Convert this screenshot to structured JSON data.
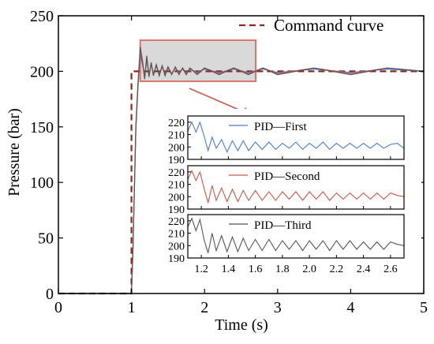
{
  "chart_data": [
    {
      "type": "line",
      "xlabel": "Time (s)",
      "ylabel": "Pressure (bar)",
      "xlim": [
        0,
        5
      ],
      "ylim": [
        0,
        250
      ],
      "xticks": [
        0,
        1,
        2,
        3,
        4,
        5
      ],
      "yticks": [
        0,
        50,
        100,
        150,
        200,
        250
      ],
      "grid": false,
      "legend_position": "top-right",
      "series": [
        {
          "name": "Command curve",
          "style": "dashed",
          "color": "#8b2a1c",
          "x": [
            0,
            1.0,
            1.0,
            5.0
          ],
          "y": [
            0,
            0,
            200,
            200
          ]
        },
        {
          "style": "solid",
          "color": "#4a79d6",
          "x": [
            0,
            1.0,
            1.02,
            1.06,
            1.09,
            1.12,
            1.15,
            1.18,
            1.21,
            1.24,
            1.27,
            1.3,
            1.34,
            1.38,
            1.42,
            1.46,
            1.5,
            1.55,
            1.6,
            1.65,
            1.7,
            1.75,
            1.8,
            1.9,
            2.0,
            2.2,
            2.4,
            2.6,
            2.8,
            3.0,
            3.5,
            4.0,
            4.5,
            5.0
          ],
          "y": [
            0,
            0,
            40,
            150,
            188,
            215,
            206,
            196,
            210,
            197,
            206,
            198,
            205,
            197,
            204,
            198,
            203,
            198,
            203,
            199,
            202,
            198,
            202,
            199,
            202,
            199,
            202,
            199,
            202,
            199,
            202,
            199,
            202,
            200
          ]
        },
        {
          "style": "solid",
          "color": "#c9574a",
          "x": [
            0,
            1.0,
            1.02,
            1.06,
            1.09,
            1.12,
            1.15,
            1.18,
            1.21,
            1.24,
            1.27,
            1.3,
            1.34,
            1.38,
            1.42,
            1.46,
            1.5,
            1.55,
            1.6,
            1.65,
            1.7,
            1.75,
            1.8,
            1.9,
            2.0,
            2.2,
            2.4,
            2.6,
            2.8,
            3.0,
            3.5,
            4.0,
            4.5,
            5.0
          ],
          "y": [
            0,
            0,
            38,
            148,
            186,
            217,
            208,
            194,
            212,
            196,
            207,
            197,
            206,
            197,
            205,
            197,
            204,
            198,
            203,
            198,
            203,
            198,
            203,
            198,
            203,
            198,
            203,
            198,
            203,
            198,
            203,
            198,
            203,
            200
          ]
        },
        {
          "style": "solid",
          "color": "#555555",
          "x": [
            0,
            1.0,
            1.02,
            1.06,
            1.09,
            1.12,
            1.15,
            1.18,
            1.21,
            1.24,
            1.27,
            1.3,
            1.34,
            1.38,
            1.42,
            1.46,
            1.5,
            1.55,
            1.6,
            1.65,
            1.7,
            1.75,
            1.8,
            1.9,
            2.0,
            2.2,
            2.4,
            2.6,
            2.8,
            3.0,
            3.5,
            4.0,
            4.5,
            5.0
          ],
          "y": [
            0,
            0,
            42,
            152,
            190,
            222,
            210,
            193,
            214,
            195,
            208,
            196,
            206,
            196,
            205,
            196,
            204,
            197,
            204,
            197,
            203,
            197,
            203,
            197,
            203,
            197,
            203,
            197,
            203,
            197,
            203,
            197,
            203,
            200
          ]
        }
      ],
      "annotation": {
        "zoom_box_x": [
          1.12,
          2.7
        ],
        "zoom_box_y": [
          191,
          228
        ]
      }
    },
    {
      "type": "line",
      "xlim": [
        1.1,
        2.7
      ],
      "ylim": [
        190,
        225
      ],
      "yticks": [
        190,
        200,
        210,
        220
      ],
      "xticks": [
        1.2,
        1.4,
        1.6,
        1.8,
        2.0,
        2.2,
        2.4,
        2.6
      ],
      "legend_position": "top",
      "series": [
        {
          "name": "PID—First",
          "color": "#4a79d6",
          "x": [
            1.1,
            1.13,
            1.16,
            1.19,
            1.22,
            1.25,
            1.28,
            1.31,
            1.35,
            1.39,
            1.43,
            1.47,
            1.51,
            1.55,
            1.6,
            1.65,
            1.7,
            1.75,
            1.8,
            1.85,
            1.9,
            1.95,
            2.0,
            2.05,
            2.1,
            2.15,
            2.2,
            2.25,
            2.3,
            2.35,
            2.4,
            2.45,
            2.5,
            2.55,
            2.6,
            2.65,
            2.7
          ],
          "y": [
            213,
            220,
            212,
            220,
            209,
            197,
            208,
            199,
            206,
            196,
            205,
            197,
            205,
            197,
            204,
            198,
            204,
            198,
            203,
            199,
            204,
            198,
            203,
            199,
            204,
            198,
            203,
            199,
            203,
            199,
            203,
            199,
            203,
            199,
            202,
            203,
            199
          ]
        }
      ]
    },
    {
      "type": "line",
      "xlim": [
        1.1,
        2.7
      ],
      "ylim": [
        190,
        225
      ],
      "yticks": [
        190,
        200,
        210,
        220
      ],
      "xticks": [
        1.2,
        1.4,
        1.6,
        1.8,
        2.0,
        2.2,
        2.4,
        2.6
      ],
      "legend_position": "top",
      "series": [
        {
          "name": "PID—Second",
          "color": "#c9574a",
          "x": [
            1.1,
            1.13,
            1.16,
            1.19,
            1.22,
            1.25,
            1.28,
            1.31,
            1.35,
            1.39,
            1.43,
            1.47,
            1.51,
            1.55,
            1.6,
            1.65,
            1.7,
            1.75,
            1.8,
            1.85,
            1.9,
            1.95,
            2.0,
            2.05,
            2.1,
            2.15,
            2.2,
            2.25,
            2.3,
            2.35,
            2.4,
            2.45,
            2.5,
            2.55,
            2.6,
            2.65,
            2.7
          ],
          "y": [
            214,
            221,
            213,
            220,
            207,
            195,
            209,
            197,
            207,
            196,
            206,
            196,
            205,
            197,
            205,
            197,
            204,
            197,
            204,
            198,
            204,
            197,
            204,
            198,
            204,
            197,
            203,
            198,
            203,
            198,
            203,
            198,
            203,
            198,
            203,
            201,
            200
          ]
        }
      ]
    },
    {
      "type": "line",
      "xlim": [
        1.1,
        2.7
      ],
      "ylim": [
        190,
        225
      ],
      "yticks": [
        190,
        200,
        210,
        220
      ],
      "xticks": [
        1.2,
        1.4,
        1.6,
        1.8,
        2.0,
        2.2,
        2.4,
        2.6
      ],
      "xticklabels": [
        "1.2",
        "1.4",
        "1.6",
        "1.8",
        "2.0",
        "2.2",
        "2.4",
        "2.6"
      ],
      "legend_position": "top",
      "series": [
        {
          "name": "PID—Third",
          "color": "#555555",
          "x": [
            1.1,
            1.13,
            1.16,
            1.19,
            1.22,
            1.25,
            1.28,
            1.31,
            1.35,
            1.39,
            1.43,
            1.47,
            1.51,
            1.55,
            1.6,
            1.65,
            1.7,
            1.75,
            1.8,
            1.85,
            1.9,
            1.95,
            2.0,
            2.05,
            2.1,
            2.15,
            2.2,
            2.25,
            2.3,
            2.35,
            2.4,
            2.45,
            2.5,
            2.55,
            2.6,
            2.65,
            2.7
          ],
          "y": [
            215,
            222,
            212,
            221,
            205,
            194,
            210,
            196,
            208,
            195,
            207,
            195,
            206,
            196,
            205,
            196,
            205,
            196,
            204,
            197,
            204,
            196,
            204,
            197,
            204,
            196,
            204,
            197,
            204,
            197,
            203,
            197,
            203,
            197,
            203,
            201,
            200
          ]
        }
      ]
    }
  ]
}
